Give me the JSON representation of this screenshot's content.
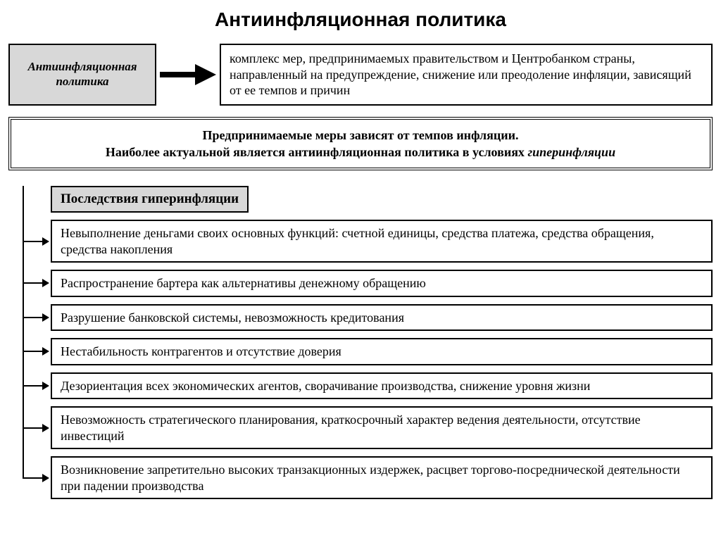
{
  "title": "Антиинфляционная политика",
  "definition": {
    "term": "Антиинфляционная политика",
    "text": "комплекс мер, предпринимаемых правительством и Центробанком страны, направленный на предупреждение, снижение или преодоление инфляции, зависящий от ее темпов и причин"
  },
  "note": {
    "line1": "Предпринимаемые меры зависят от темпов инфляции.",
    "line2_a": "Наиболее актуальной является антиинфляционная политика в условиях ",
    "line2_b": "гиперинфляции"
  },
  "consequences": {
    "header": "Последствия гиперинфляции",
    "items": [
      "Невыполнение деньгами своих основных функций: счетной единицы, средства платежа, средства обращения, средства накопления",
      "Распространение бартера как альтернативы денежному обращению",
      "Разрушение банковской системы, невозможность кредитования",
      "Нестабильность контрагентов и отсутствие доверия",
      "Дезориентация всех экономических агентов, сворачивание производства, снижение уровня жизни",
      "Невозможность стратегического планирования, краткосрочный характер ведения деятельности, отсутствие инвестиций",
      "Возникновение запретительно высоких транзакционных издержек, расцвет торгово-посреднической деятельности при падении производства"
    ]
  },
  "style": {
    "bg": "#ffffff",
    "border": "#000000",
    "header_fill": "#d8d8d8",
    "arrow_fill": "#000000",
    "title_fontsize": 28,
    "body_fontsize": 18
  }
}
